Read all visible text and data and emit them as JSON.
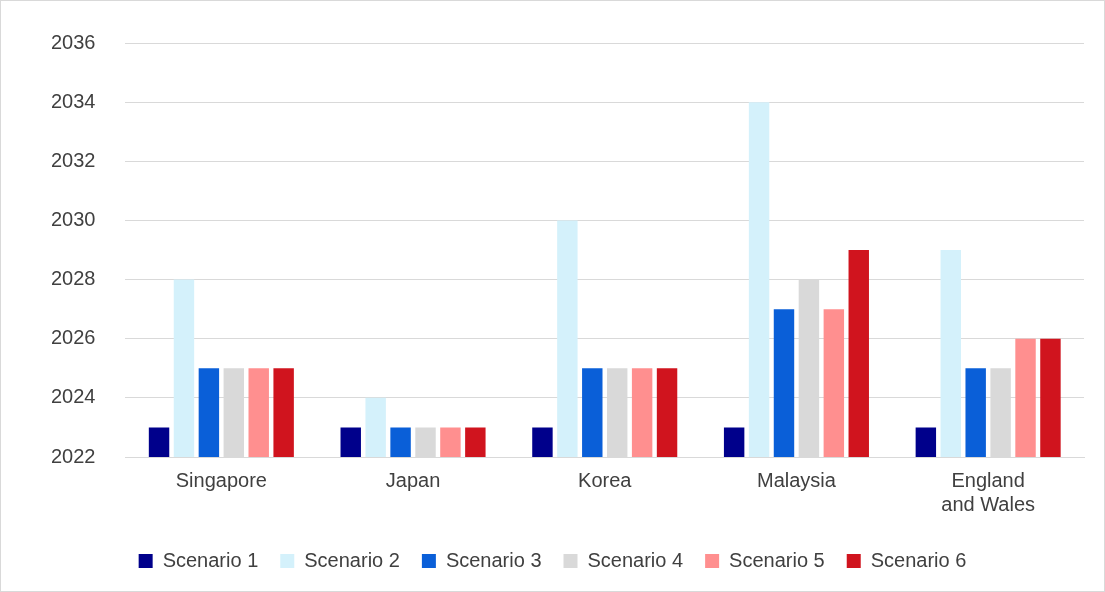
{
  "chart_data": {
    "type": "bar",
    "categories": [
      "Singapore",
      "Japan",
      "Korea",
      "Malaysia",
      "England and Wales"
    ],
    "series": [
      {
        "name": "Scenario 1",
        "color": "#00008b",
        "values": [
          2023,
          2023,
          2023,
          2023,
          2023
        ]
      },
      {
        "name": "Scenario 2",
        "color": "#d4f1fb",
        "values": [
          2028,
          2024,
          2030,
          2034,
          2029
        ]
      },
      {
        "name": "Scenario 3",
        "color": "#0a5fd8",
        "values": [
          2025,
          2023,
          2025,
          2027,
          2025
        ]
      },
      {
        "name": "Scenario 4",
        "color": "#d9d9d9",
        "values": [
          2025,
          2023,
          2025,
          2028,
          2025
        ]
      },
      {
        "name": "Scenario 5",
        "color": "#ff8f8f",
        "values": [
          2025,
          2023,
          2025,
          2027,
          2026
        ]
      },
      {
        "name": "Scenario 6",
        "color": "#d0141e",
        "values": [
          2025,
          2023,
          2025,
          2029,
          2026
        ]
      }
    ],
    "ylim": [
      2022,
      2036
    ],
    "yticks": [
      2022,
      2024,
      2026,
      2028,
      2030,
      2032,
      2034,
      2036
    ],
    "grid": "y",
    "legend": "bottom"
  }
}
